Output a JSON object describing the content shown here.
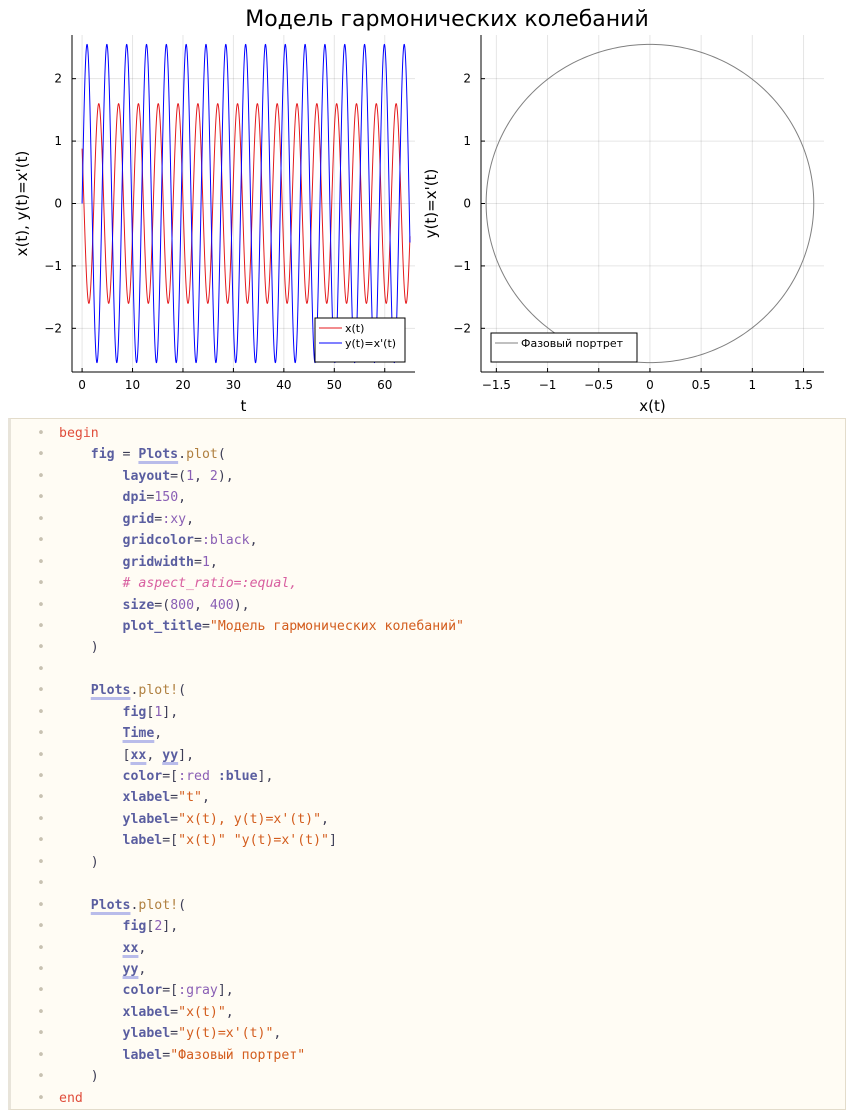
{
  "figure": {
    "plot_title": "Модель гармонических колебаний"
  },
  "chart_data": [
    {
      "type": "line",
      "title": "",
      "xlabel": "t",
      "ylabel": "x(t), y(t)=x'(t)",
      "xlim": [
        -2,
        66
      ],
      "ylim": [
        -2.7,
        2.7
      ],
      "xticks": [
        0,
        10,
        20,
        30,
        40,
        50,
        60
      ],
      "yticks": [
        -2,
        -1,
        0,
        1,
        2
      ],
      "grid": true,
      "legend": "bottom-right",
      "x_range": [
        0,
        65
      ],
      "series": [
        {
          "name": "x(t)",
          "color": "#e41a1c",
          "amplitude": 1.6,
          "period": 3.93,
          "phase": 2.56
        },
        {
          "name": "y(t)=x'(t)",
          "color": "#0000ff",
          "amplitude": 2.55,
          "period": 3.93,
          "phase": 0.0
        }
      ]
    },
    {
      "type": "line",
      "title": "",
      "xlabel": "x(t)",
      "ylabel": "y(t)=x'(t)",
      "xlim": [
        -1.65,
        1.7
      ],
      "ylim": [
        -2.7,
        2.7
      ],
      "xticks": [
        -1.5,
        -1.0,
        -0.5,
        0.0,
        0.5,
        1.0,
        1.5
      ],
      "yticks": [
        -2,
        -1,
        0,
        1,
        2
      ],
      "grid": true,
      "legend": "bottom-left",
      "series": [
        {
          "name": "Фазовый портрет",
          "color": "#808080",
          "shape": "ellipse",
          "rx": 1.6,
          "ry": 2.55
        }
      ]
    }
  ],
  "code": {
    "lines": [
      [
        [
          "kw",
          "begin"
        ]
      ],
      [
        [
          "pu",
          "    "
        ],
        [
          "id",
          "fig"
        ],
        [
          "pu",
          " = "
        ],
        [
          "mod",
          "Plots"
        ],
        [
          "pu",
          "."
        ],
        [
          "fn",
          "plot"
        ],
        [
          "pu",
          "("
        ]
      ],
      [
        [
          "pu",
          "        "
        ],
        [
          "id",
          "layout"
        ],
        [
          "pu",
          "=("
        ],
        [
          "num",
          "1"
        ],
        [
          "pu",
          ", "
        ],
        [
          "num",
          "2"
        ],
        [
          "pu",
          "),"
        ]
      ],
      [
        [
          "pu",
          "        "
        ],
        [
          "id",
          "dpi"
        ],
        [
          "pu",
          "="
        ],
        [
          "num",
          "150"
        ],
        [
          "pu",
          ","
        ]
      ],
      [
        [
          "pu",
          "        "
        ],
        [
          "id",
          "grid"
        ],
        [
          "pu",
          "="
        ],
        [
          "sym",
          ":xy"
        ],
        [
          "pu",
          ","
        ]
      ],
      [
        [
          "pu",
          "        "
        ],
        [
          "id",
          "gridcolor"
        ],
        [
          "pu",
          "="
        ],
        [
          "sym",
          ":black"
        ],
        [
          "pu",
          ","
        ]
      ],
      [
        [
          "pu",
          "        "
        ],
        [
          "id",
          "gridwidth"
        ],
        [
          "pu",
          "="
        ],
        [
          "num",
          "1"
        ],
        [
          "pu",
          ","
        ]
      ],
      [
        [
          "pu",
          "        "
        ],
        [
          "cm",
          "# aspect_ratio=:equal,"
        ]
      ],
      [
        [
          "pu",
          "        "
        ],
        [
          "id",
          "size"
        ],
        [
          "pu",
          "=("
        ],
        [
          "num",
          "800"
        ],
        [
          "pu",
          ", "
        ],
        [
          "num",
          "400"
        ],
        [
          "pu",
          "),"
        ]
      ],
      [
        [
          "pu",
          "        "
        ],
        [
          "id",
          "plot_title"
        ],
        [
          "pu",
          "="
        ],
        [
          "str",
          "\"Модель гармонических колебаний\""
        ]
      ],
      [
        [
          "pu",
          "    )"
        ]
      ],
      [],
      [
        [
          "pu",
          "    "
        ],
        [
          "mod",
          "Plots"
        ],
        [
          "pu",
          "."
        ],
        [
          "fn",
          "plot!"
        ],
        [
          "pu",
          "("
        ]
      ],
      [
        [
          "pu",
          "        "
        ],
        [
          "id",
          "fig"
        ],
        [
          "pu",
          "["
        ],
        [
          "num",
          "1"
        ],
        [
          "pu",
          "],"
        ]
      ],
      [
        [
          "pu",
          "        "
        ],
        [
          "mod",
          "Time"
        ],
        [
          "pu",
          ","
        ]
      ],
      [
        [
          "pu",
          "        ["
        ],
        [
          "mod",
          "xx"
        ],
        [
          "pu",
          ", "
        ],
        [
          "mod",
          "yy"
        ],
        [
          "pu",
          "],"
        ]
      ],
      [
        [
          "pu",
          "        "
        ],
        [
          "id",
          "color"
        ],
        [
          "pu",
          "=["
        ],
        [
          "sym",
          ":red"
        ],
        [
          "pu",
          " "
        ],
        [
          "id",
          ":blue"
        ],
        [
          "pu",
          "],"
        ]
      ],
      [
        [
          "pu",
          "        "
        ],
        [
          "id",
          "xlabel"
        ],
        [
          "pu",
          "="
        ],
        [
          "str",
          "\"t\""
        ],
        [
          "pu",
          ","
        ]
      ],
      [
        [
          "pu",
          "        "
        ],
        [
          "id",
          "ylabel"
        ],
        [
          "pu",
          "="
        ],
        [
          "str",
          "\"x(t), y(t)=x'(t)\""
        ],
        [
          "pu",
          ","
        ]
      ],
      [
        [
          "pu",
          "        "
        ],
        [
          "id",
          "label"
        ],
        [
          "pu",
          "=["
        ],
        [
          "str",
          "\"x(t)\""
        ],
        [
          "pu",
          " "
        ],
        [
          "str",
          "\"y(t)=x'(t)\""
        ],
        [
          "pu",
          "]"
        ]
      ],
      [
        [
          "pu",
          "    )"
        ]
      ],
      [],
      [
        [
          "pu",
          "    "
        ],
        [
          "mod",
          "Plots"
        ],
        [
          "pu",
          "."
        ],
        [
          "fn",
          "plot!"
        ],
        [
          "pu",
          "("
        ]
      ],
      [
        [
          "pu",
          "        "
        ],
        [
          "id",
          "fig"
        ],
        [
          "pu",
          "["
        ],
        [
          "num",
          "2"
        ],
        [
          "pu",
          "],"
        ]
      ],
      [
        [
          "pu",
          "        "
        ],
        [
          "mod",
          "xx"
        ],
        [
          "pu",
          ","
        ]
      ],
      [
        [
          "pu",
          "        "
        ],
        [
          "mod",
          "yy"
        ],
        [
          "pu",
          ","
        ]
      ],
      [
        [
          "pu",
          "        "
        ],
        [
          "id",
          "color"
        ],
        [
          "pu",
          "=["
        ],
        [
          "sym",
          ":gray"
        ],
        [
          "pu",
          "],"
        ]
      ],
      [
        [
          "pu",
          "        "
        ],
        [
          "id",
          "xlabel"
        ],
        [
          "pu",
          "="
        ],
        [
          "str",
          "\"x(t)\""
        ],
        [
          "pu",
          ","
        ]
      ],
      [
        [
          "pu",
          "        "
        ],
        [
          "id",
          "ylabel"
        ],
        [
          "pu",
          "="
        ],
        [
          "str",
          "\"y(t)=x'(t)\""
        ],
        [
          "pu",
          ","
        ]
      ],
      [
        [
          "pu",
          "        "
        ],
        [
          "id",
          "label"
        ],
        [
          "pu",
          "="
        ],
        [
          "str",
          "\"Фазовый портрет\""
        ]
      ],
      [
        [
          "pu",
          "    )"
        ]
      ],
      [
        [
          "kw",
          "end"
        ]
      ]
    ]
  }
}
